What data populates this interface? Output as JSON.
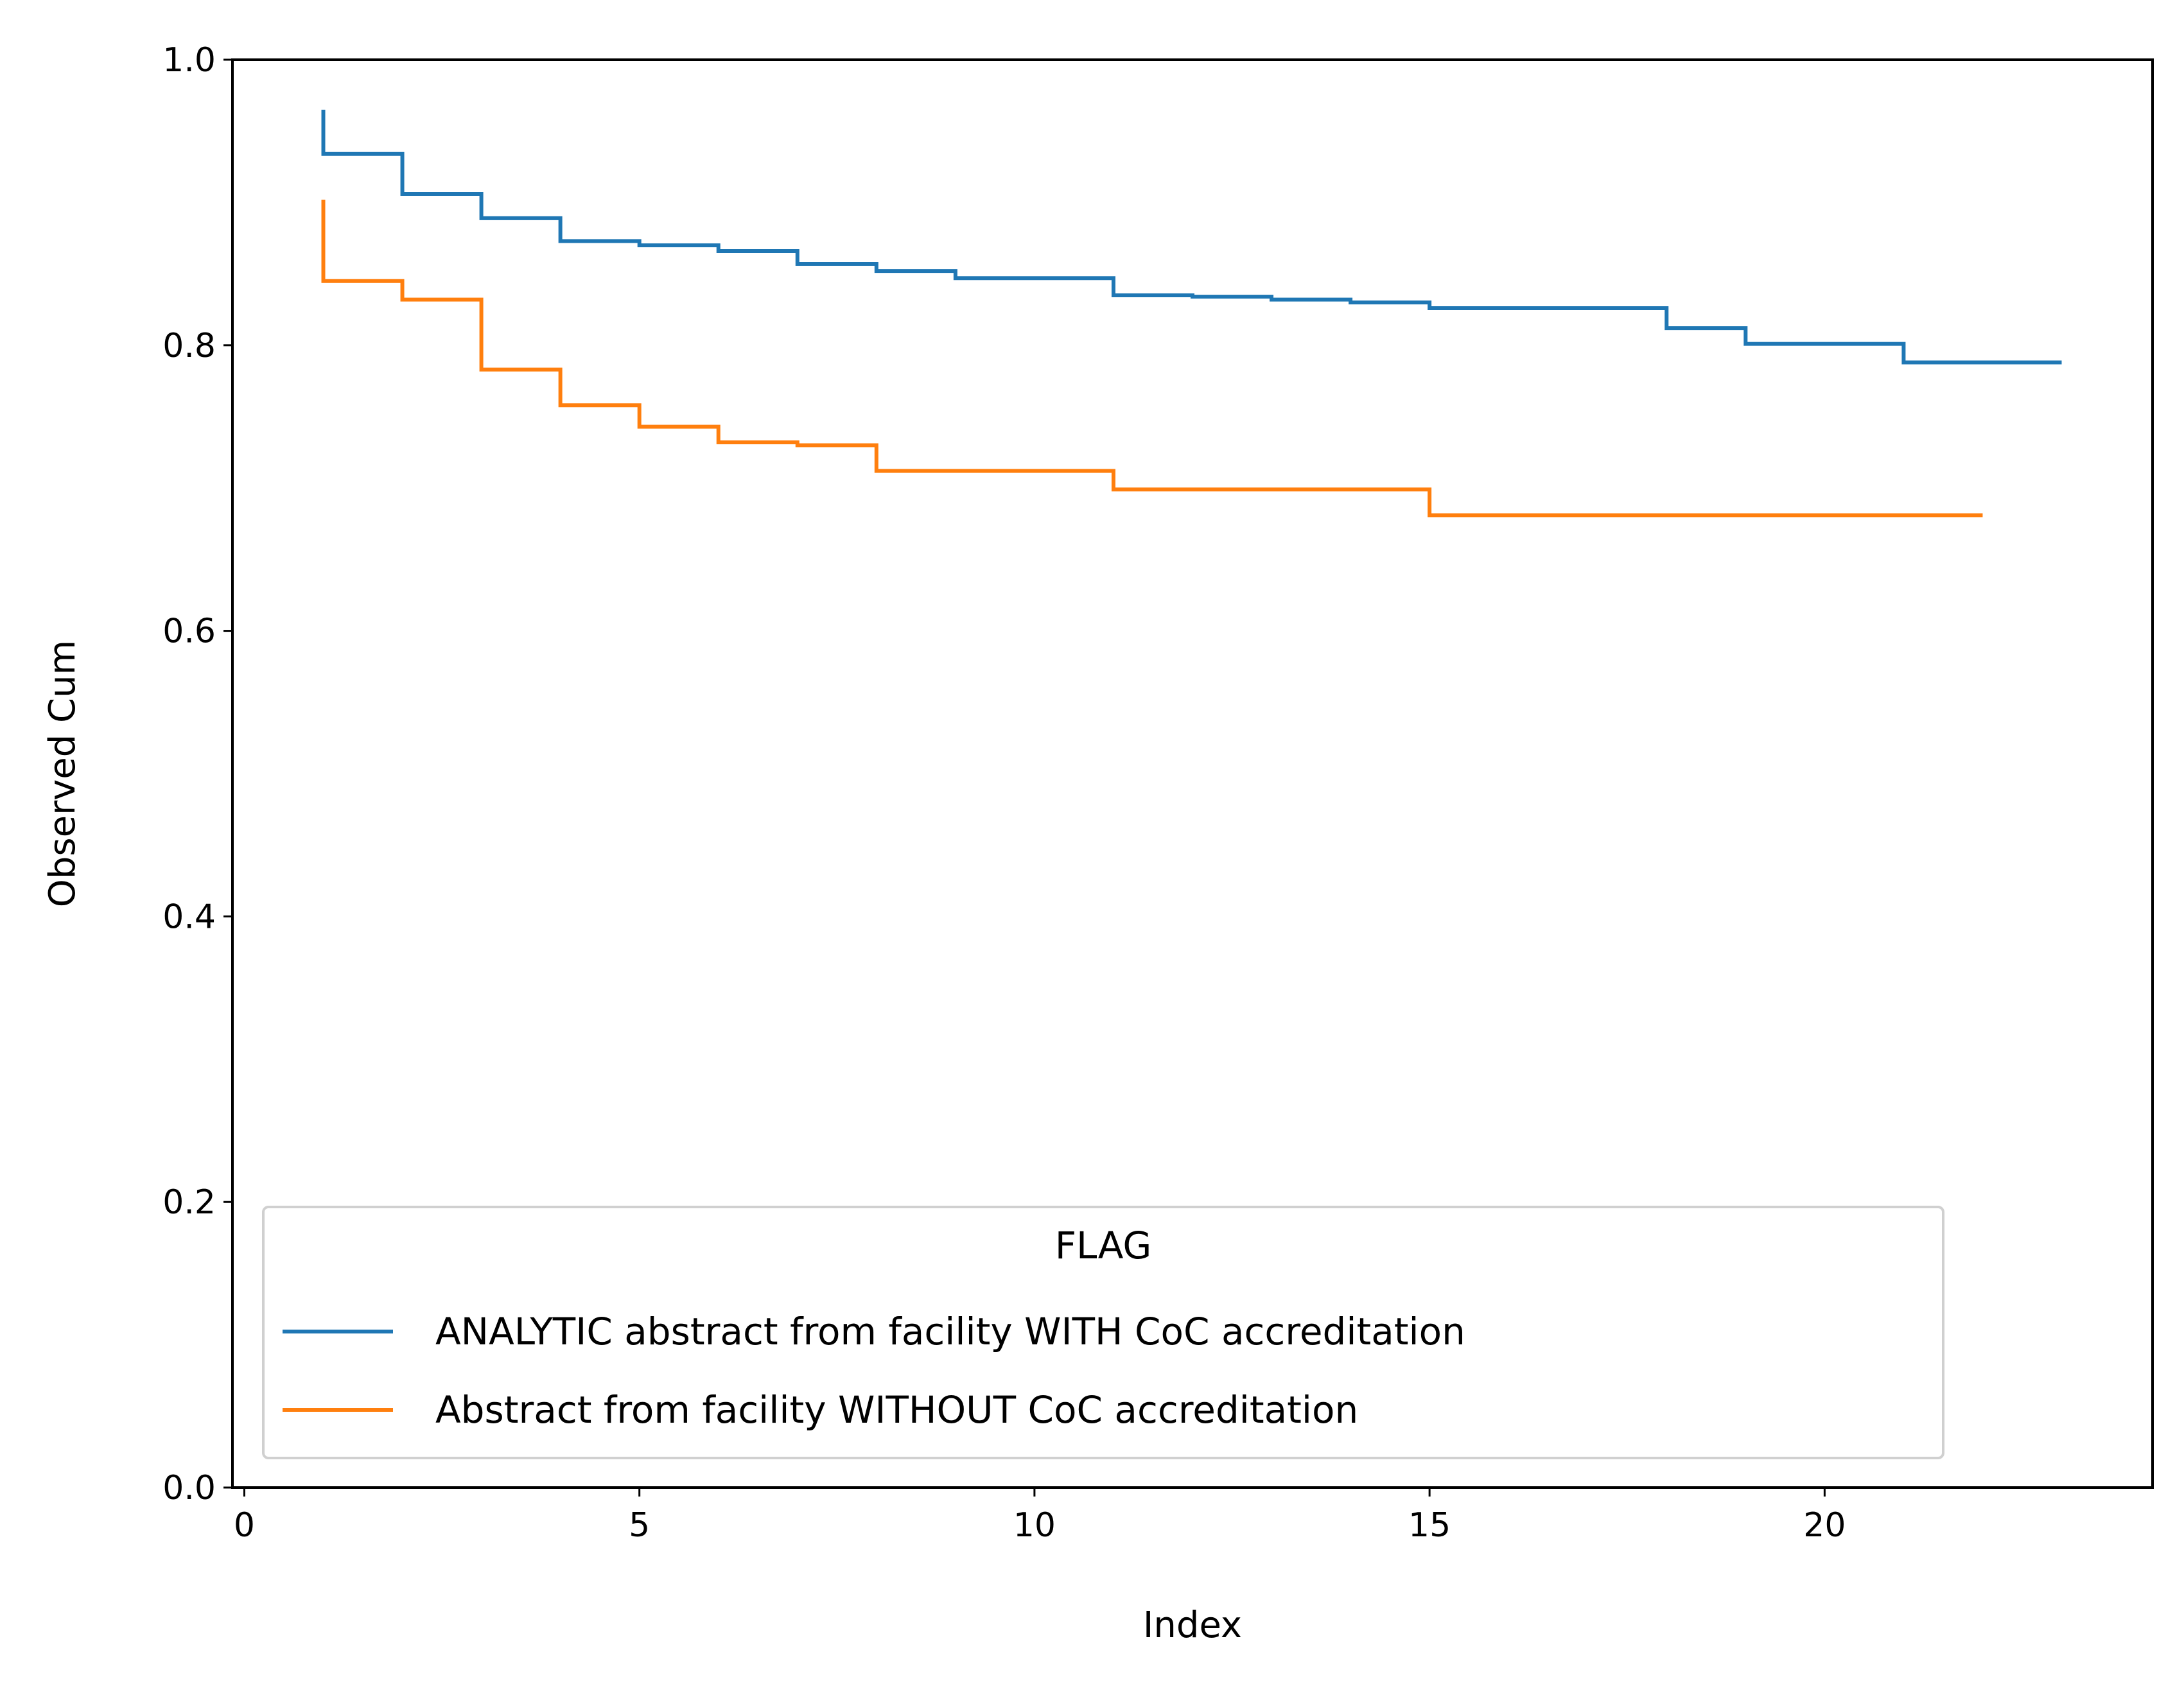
{
  "chart_data": {
    "type": "line",
    "drawstyle": "steps-post",
    "xlabel": "Index",
    "ylabel": "Observed Cum",
    "xlim": [
      -0.15,
      24.15
    ],
    "ylim": [
      0.0,
      1.0
    ],
    "xticks": [
      0,
      5,
      10,
      15,
      20
    ],
    "xtick_labels": [
      "0",
      "5",
      "10",
      "15",
      "20"
    ],
    "yticks": [
      0.0,
      0.2,
      0.4,
      0.6,
      0.8,
      1.0
    ],
    "ytick_labels": [
      "0.0",
      "0.2",
      "0.4",
      "0.6",
      "0.8",
      "1.0"
    ],
    "grid": false,
    "legend": {
      "title": "FLAG",
      "placement": "lower-left"
    },
    "series": [
      {
        "name": "ANALYTIC abstract from facility WITH CoC accreditation",
        "color": "#1f77b4",
        "x": [
          1,
          1,
          2,
          3,
          4,
          5,
          6,
          7,
          8,
          9,
          11,
          12,
          13,
          14,
          15,
          18,
          19,
          21,
          23
        ],
        "y": [
          0.965,
          0.934,
          0.906,
          0.889,
          0.873,
          0.87,
          0.866,
          0.857,
          0.852,
          0.847,
          0.835,
          0.834,
          0.832,
          0.83,
          0.826,
          0.812,
          0.801,
          0.788,
          0.788
        ]
      },
      {
        "name": "Abstract from facility WITHOUT CoC accreditation",
        "color": "#ff7f0e",
        "x": [
          1,
          1,
          2,
          3,
          4,
          5,
          6,
          7,
          8,
          11,
          15,
          22
        ],
        "y": [
          0.902,
          0.845,
          0.832,
          0.783,
          0.758,
          0.743,
          0.732,
          0.73,
          0.712,
          0.699,
          0.681,
          0.681
        ]
      }
    ]
  }
}
